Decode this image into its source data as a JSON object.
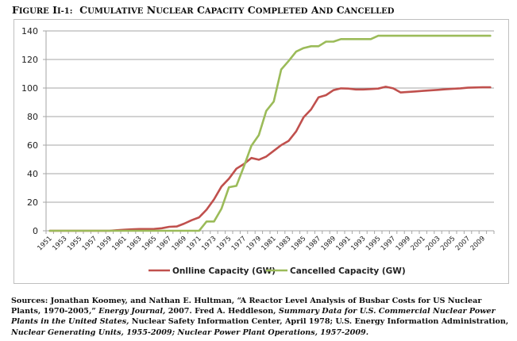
{
  "figure": {
    "title_prefix": "Figure II-1:",
    "title_text": "Cumulative Nuclear Capacity Completed and Cancelled"
  },
  "sources": {
    "p1": "Sources: Jonathan Koomey, and Nathan E. Hultman, “A Reactor Level Analysis of Busbar Costs for US Nuclear Plants, 1970-2005,” ",
    "i1": "Energy Journal,",
    "p2": " 2007. Fred A. Heddleson, ",
    "i2": "Summary Data for U.S. Commercial Nuclear Power Plants in the United States,",
    "p3": " Nuclear Safety Information Center, April 1978;  U.S. Energy Information Administration, ",
    "i3": "Nuclear Generating Units, 1955-2009; Nuclear Power Plant Operations, 1957-2009."
  },
  "chart_data": {
    "type": "line",
    "title": "Cumulative Nuclear Capacity Completed and Cancelled",
    "xlabel": "",
    "ylabel": "",
    "ylim": [
      0,
      140
    ],
    "yticks": [
      0,
      20,
      40,
      60,
      80,
      100,
      120,
      140
    ],
    "grid": true,
    "legend": "bottom",
    "x": [
      1951,
      1952,
      1953,
      1954,
      1955,
      1956,
      1957,
      1958,
      1959,
      1960,
      1961,
      1962,
      1963,
      1964,
      1965,
      1966,
      1967,
      1968,
      1969,
      1970,
      1971,
      1972,
      1973,
      1974,
      1975,
      1976,
      1977,
      1978,
      1979,
      1980,
      1981,
      1982,
      1983,
      1984,
      1985,
      1986,
      1987,
      1988,
      1989,
      1990,
      1991,
      1992,
      1993,
      1994,
      1995,
      1996,
      1997,
      1998,
      1999,
      2000,
      2001,
      2002,
      2003,
      2004,
      2005,
      2006,
      2007,
      2008,
      2009,
      2010
    ],
    "xtick_labels": [
      "1951",
      "1953",
      "1955",
      "1957",
      "1959",
      "1961",
      "1963",
      "1965",
      "1967",
      "1969",
      "1971",
      "1973",
      "1975",
      "1977",
      "1979",
      "1981",
      "1983",
      "1985",
      "1987",
      "1989",
      "1991",
      "1993",
      "1995",
      "1997",
      "1999",
      "2001",
      "2003",
      "2005",
      "2007",
      "2009"
    ],
    "series": [
      {
        "name": "Onlline Capacity (GW)",
        "color": "#c0504d",
        "values": [
          0,
          0,
          0,
          0,
          0,
          0,
          0,
          0,
          0,
          0.4,
          0.7,
          1,
          1.2,
          1.2,
          1.3,
          1.8,
          2.8,
          3,
          5,
          7.4,
          9.4,
          14.8,
          22,
          31,
          36.5,
          43.5,
          46.7,
          51,
          49.8,
          52,
          56,
          60,
          63,
          69.6,
          79.5,
          85,
          93.5,
          95,
          98.5,
          99.8,
          99.6,
          99,
          99,
          99.3,
          99.6,
          100.9,
          99.8,
          96.9,
          97.3,
          97.6,
          98,
          98.4,
          98.7,
          99.1,
          99.5,
          99.8,
          100.2,
          100.4,
          100.5,
          100.5
        ]
      },
      {
        "name": "Cancelled Capacity (GW)",
        "color": "#9bbb59",
        "values": [
          0,
          0,
          0,
          0,
          0,
          0,
          0,
          0,
          0,
          0,
          0,
          0,
          0,
          0,
          0,
          0,
          0,
          0,
          0,
          0,
          0,
          6.5,
          6.5,
          15.5,
          30.5,
          31.5,
          45,
          59.5,
          67,
          84,
          90.5,
          113,
          119,
          125.5,
          128,
          129.3,
          129.3,
          132.5,
          132.5,
          134.3,
          134.3,
          134.3,
          134.3,
          134.3,
          136.6,
          136.6,
          136.6,
          136.6,
          136.6,
          136.6,
          136.6,
          136.6,
          136.6,
          136.6,
          136.6,
          136.6,
          136.6,
          136.6,
          136.6,
          136.6
        ]
      }
    ]
  }
}
